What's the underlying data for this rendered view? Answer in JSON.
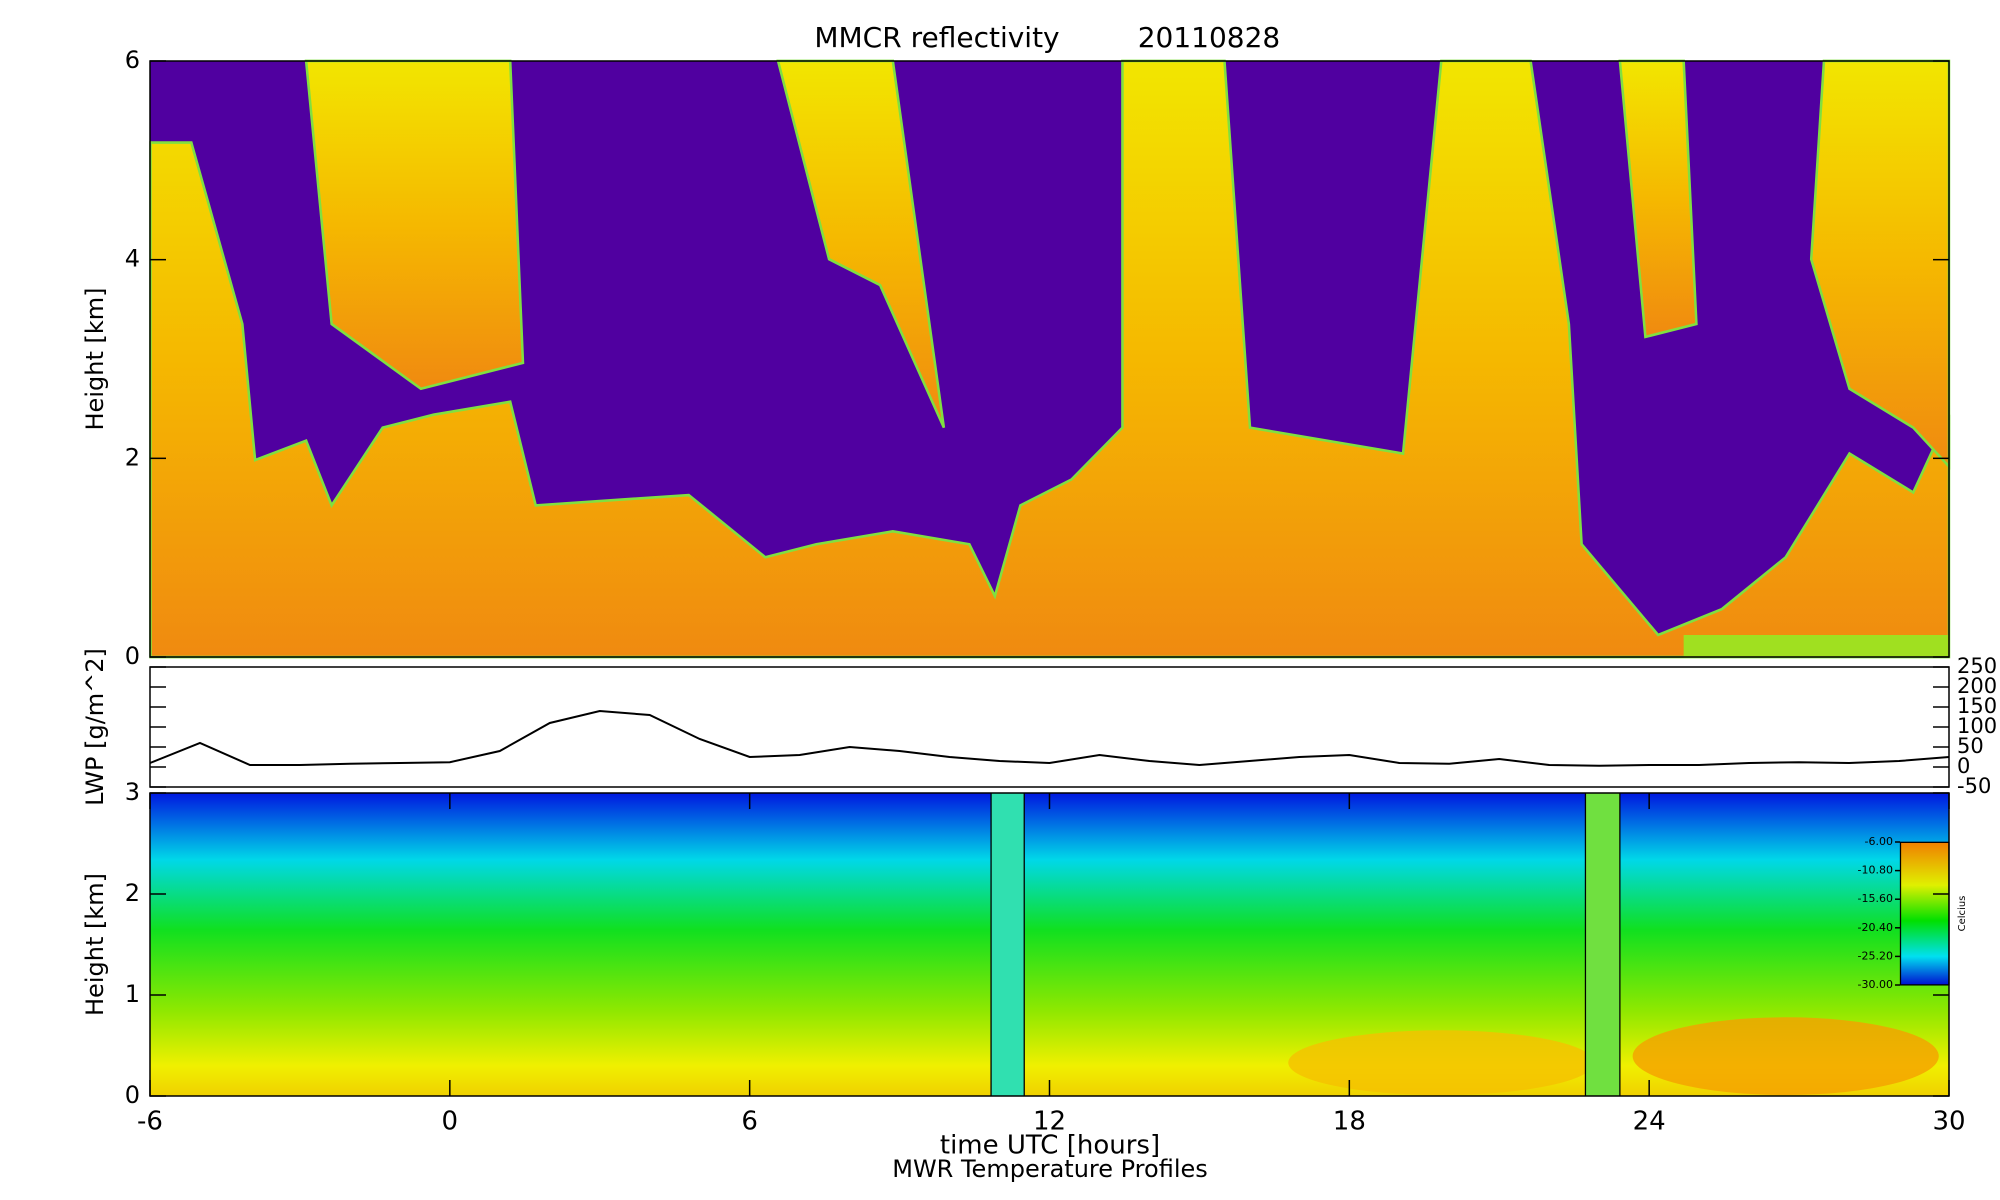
{
  "chart_data": [
    {
      "type": "heatmap",
      "title": "MMCR reflectivity",
      "subtitle": "20110828",
      "y_label": "Height [km]",
      "xlim": [
        -6,
        30
      ],
      "ylim": [
        0,
        6
      ],
      "yticks": [
        0,
        2,
        4,
        6
      ]
    },
    {
      "type": "line",
      "y_label": "LWP [g/m^2]",
      "y_axis_side": "right",
      "color": "#000000",
      "xlim": [
        -6,
        30
      ],
      "ylim": [
        -50,
        250
      ],
      "yticks": [
        -50,
        0,
        50,
        100,
        150,
        200,
        250
      ],
      "x": [
        -6,
        -5,
        -4,
        -3,
        -2,
        -1,
        0,
        1,
        2,
        3,
        4,
        5,
        6,
        7,
        8,
        9,
        10,
        11,
        12,
        13,
        14,
        15,
        16,
        17,
        18,
        19,
        20,
        21,
        22,
        23,
        24,
        25,
        26,
        27,
        28,
        29,
        30
      ],
      "values": [
        10,
        60,
        5,
        5,
        8,
        10,
        12,
        40,
        110,
        140,
        130,
        70,
        25,
        30,
        50,
        40,
        25,
        15,
        10,
        30,
        15,
        5,
        15,
        25,
        30,
        10,
        8,
        20,
        5,
        3,
        5,
        5,
        10,
        12,
        10,
        15,
        25
      ]
    },
    {
      "type": "contour",
      "y_label": "Height [km]",
      "x_label": "time UTC [hours]",
      "caption": "MWR Temperature Profiles",
      "xlim": [
        -6,
        30
      ],
      "xticks": [
        -6,
        0,
        6,
        12,
        18,
        24,
        30
      ],
      "ylim": [
        0,
        3
      ],
      "yticks": [
        0,
        1,
        2,
        3
      ],
      "colorbar": {
        "label": "Celcius",
        "ylim": [
          -30,
          -6
        ],
        "ticks": [
          {
            "value": -6,
            "label": "-6.00"
          },
          {
            "value": -10.8,
            "label": "-10.80"
          },
          {
            "value": -15.6,
            "label": "-15.60"
          },
          {
            "value": -20.4,
            "label": "-20.40"
          },
          {
            "value": -25.2,
            "label": "-25.20"
          },
          {
            "value": -30,
            "label": "-30.00"
          }
        ]
      }
    }
  ]
}
